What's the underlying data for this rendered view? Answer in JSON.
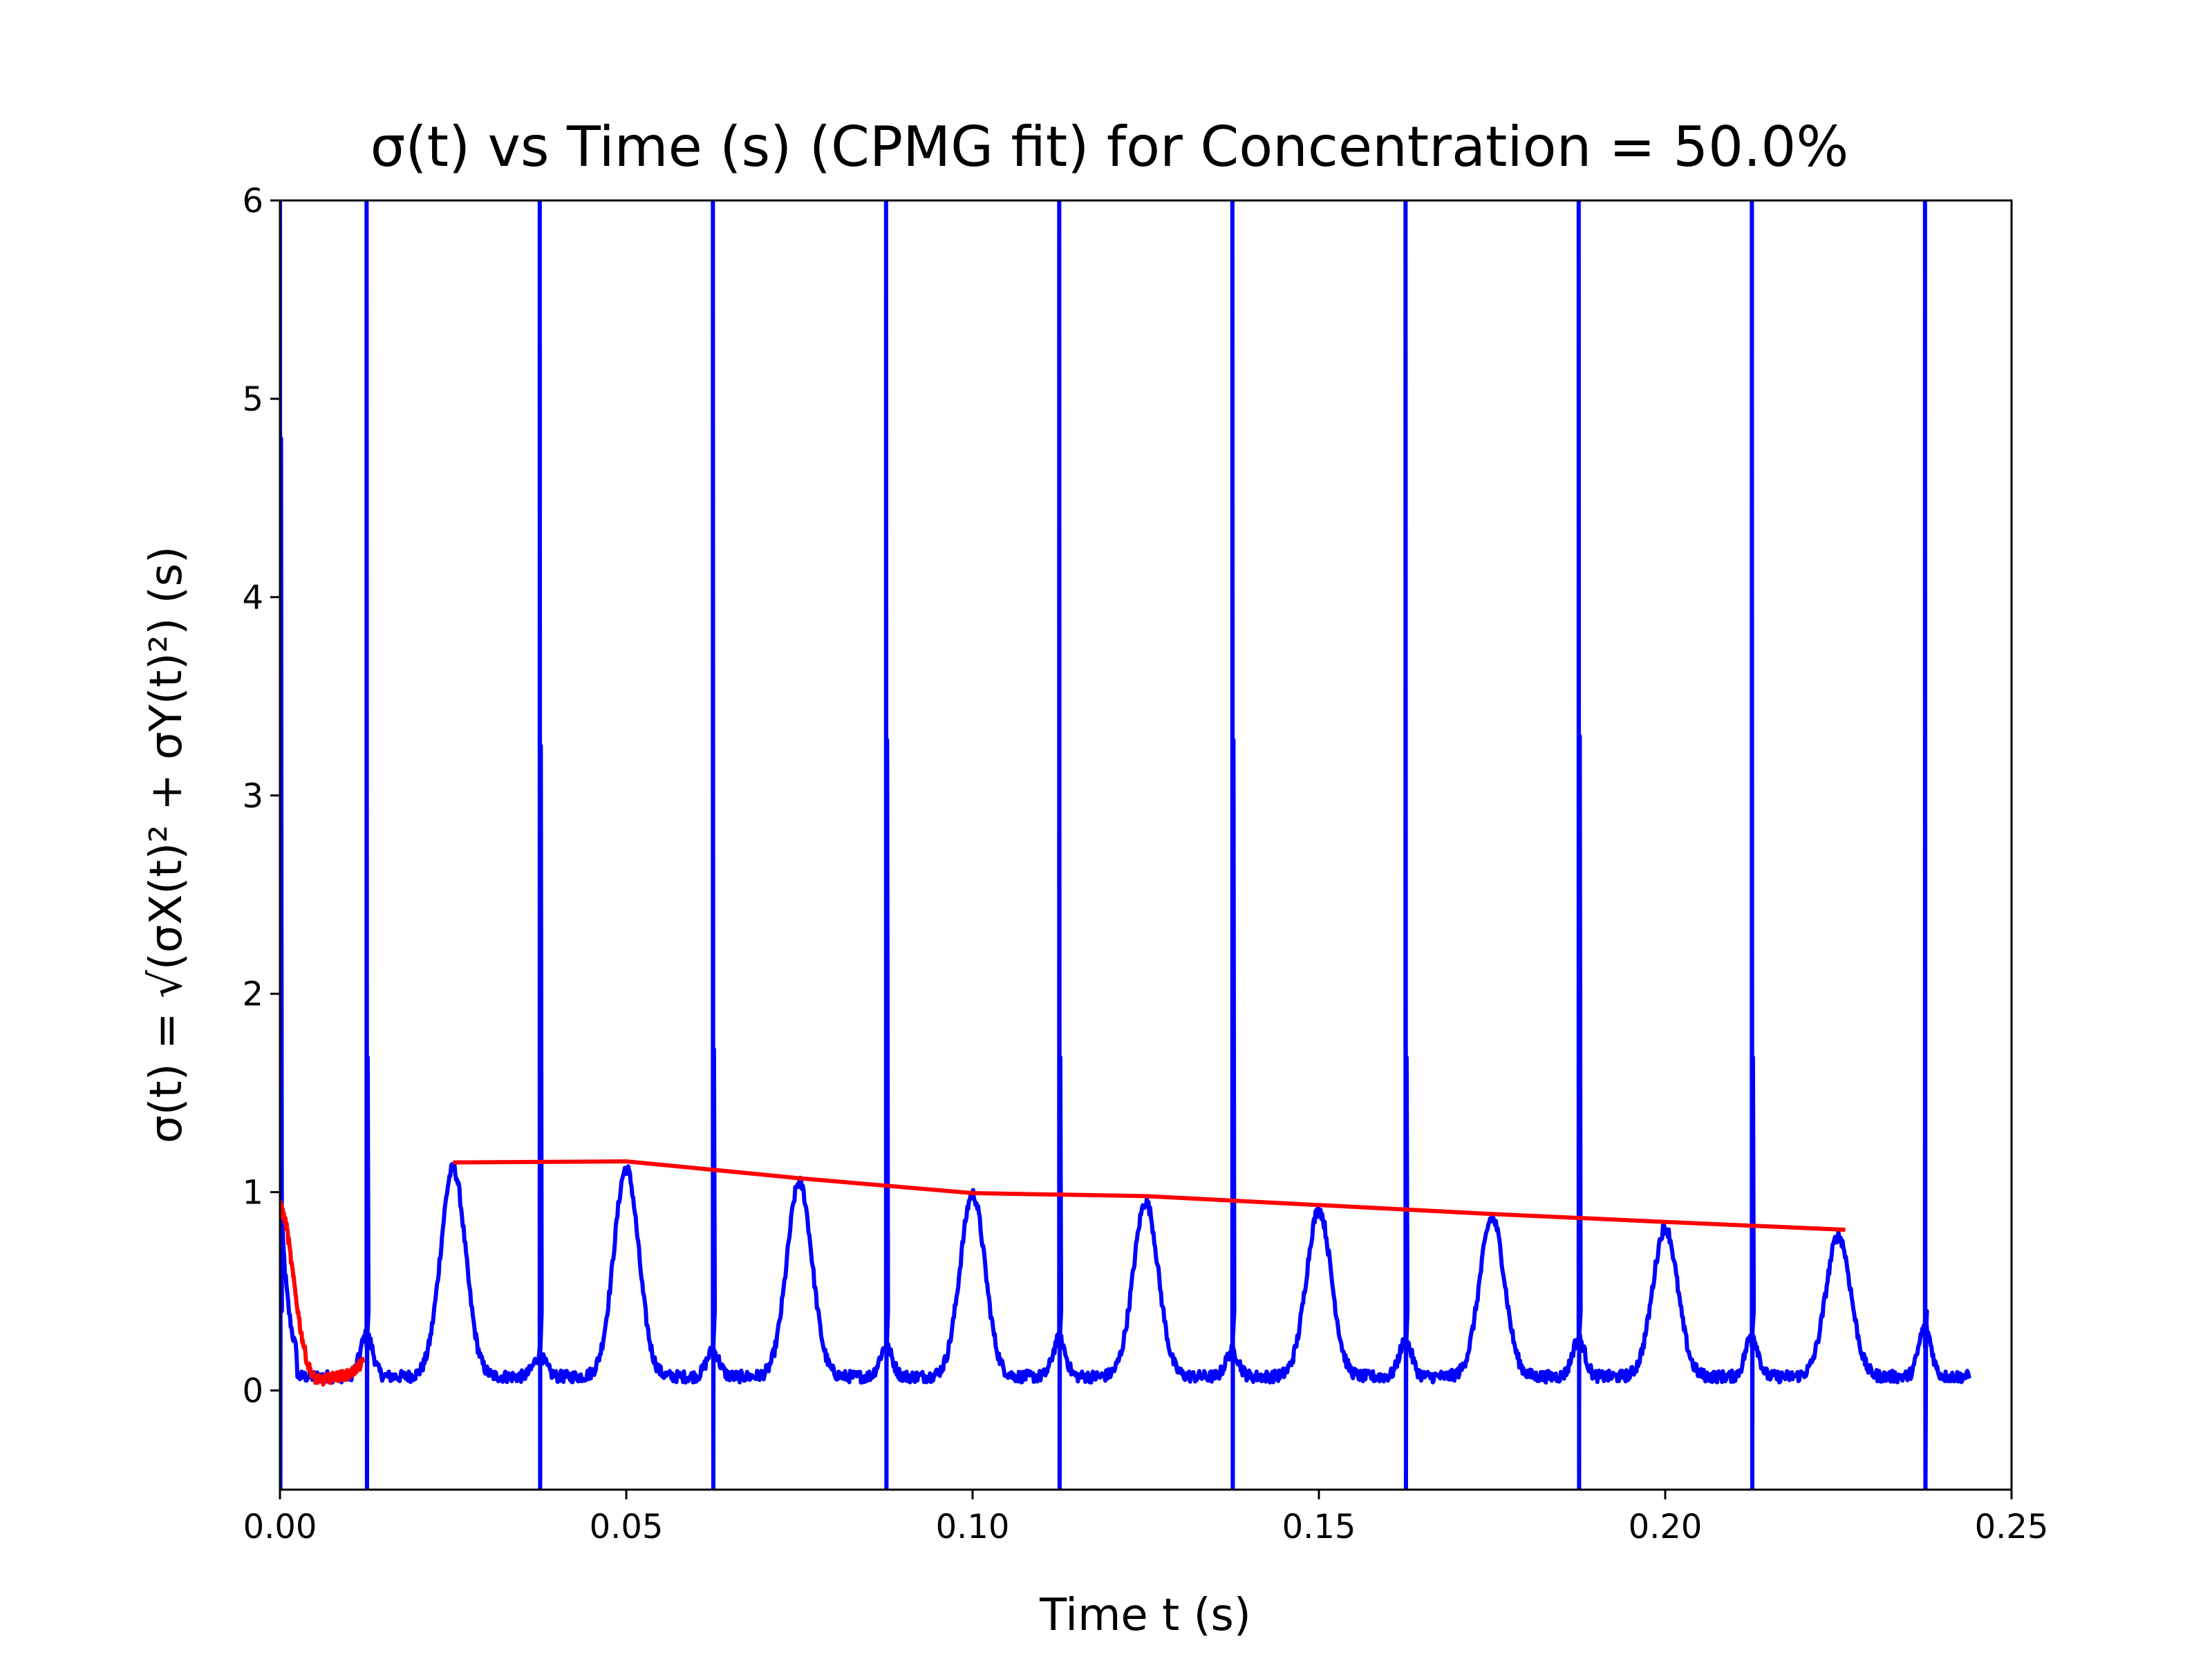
{
  "chart_data": {
    "type": "line",
    "title": "σ(t) vs Time (s) (CPMG fit) for Concentration = 50.0%",
    "xlabel": "Time t (s)",
    "ylabel": "σ(t) = √(σX(t)² + σY(t)²) (s)",
    "xlim": [
      0.0,
      0.25
    ],
    "ylim": [
      -0.5,
      6.0
    ],
    "x_ticks": [
      "0.00",
      "0.05",
      "0.10",
      "0.15",
      "0.20",
      "0.25"
    ],
    "y_ticks": [
      "0",
      "1",
      "2",
      "3",
      "4",
      "5",
      "6"
    ],
    "grid": false,
    "legend": "none",
    "series": [
      {
        "color": "#0000ff",
        "description": "measured sigma(t): baseline ~0.07 with Gaussian echo peaks every 0.025 s and sharp vertical spikes every 0.025 s offset by 0.0125 s",
        "baseline": 0.07,
        "echo_peaks": [
          {
            "x": 0.025,
            "y": 1.12
          },
          {
            "x": 0.05,
            "y": 1.12
          },
          {
            "x": 0.075,
            "y": 1.05
          },
          {
            "x": 0.1,
            "y": 0.99
          },
          {
            "x": 0.125,
            "y": 0.95
          },
          {
            "x": 0.15,
            "y": 0.91
          },
          {
            "x": 0.175,
            "y": 0.87
          },
          {
            "x": 0.2,
            "y": 0.82
          },
          {
            "x": 0.225,
            "y": 0.78
          }
        ],
        "small_bumps": [
          {
            "x": 0.0125,
            "y": 0.28
          },
          {
            "x": 0.0375,
            "y": 0.17
          },
          {
            "x": 0.0625,
            "y": 0.2
          },
          {
            "x": 0.0875,
            "y": 0.22
          },
          {
            "x": 0.1125,
            "y": 0.26
          },
          {
            "x": 0.1375,
            "y": 0.2
          },
          {
            "x": 0.1625,
            "y": 0.25
          },
          {
            "x": 0.1875,
            "y": 0.26
          },
          {
            "x": 0.2125,
            "y": 0.28
          },
          {
            "x": 0.2375,
            "y": 0.32
          }
        ],
        "spikes": [
          {
            "x": 0.0,
            "y": 6.0,
            "shoulder": 4.8
          },
          {
            "x": 0.0125,
            "y": 6.0,
            "shoulder": 1.68
          },
          {
            "x": 0.0375,
            "y": 6.0,
            "shoulder": 3.25
          },
          {
            "x": 0.0625,
            "y": 6.0,
            "shoulder": 1.72
          },
          {
            "x": 0.0875,
            "y": 6.0,
            "shoulder": 3.28
          },
          {
            "x": 0.1125,
            "y": 6.0,
            "shoulder": 1.68
          },
          {
            "x": 0.1375,
            "y": 6.0,
            "shoulder": 3.28
          },
          {
            "x": 0.1625,
            "y": 6.0,
            "shoulder": 1.68
          },
          {
            "x": 0.1875,
            "y": 6.0,
            "shoulder": 3.3
          },
          {
            "x": 0.2125,
            "y": 6.0,
            "shoulder": 1.68
          },
          {
            "x": 0.2375,
            "y": 6.0,
            "shoulder": 0.3
          }
        ],
        "x_end": 0.244,
        "initial_value": 1.05
      },
      {
        "color": "#ff0000",
        "description": "initial decay fit",
        "x": [
          0.0,
          0.001,
          0.002,
          0.003,
          0.004,
          0.005,
          0.006,
          0.008,
          0.01,
          0.012
        ],
        "y": [
          0.95,
          0.82,
          0.55,
          0.3,
          0.13,
          0.06,
          0.05,
          0.07,
          0.08,
          0.14
        ]
      },
      {
        "color": "#ff0000",
        "description": "CPMG echo envelope fit",
        "x": [
          0.025,
          0.05,
          0.075,
          0.1,
          0.125,
          0.15,
          0.175,
          0.2,
          0.226
        ],
        "y": [
          1.15,
          1.155,
          1.07,
          0.995,
          0.98,
          0.935,
          0.89,
          0.85,
          0.81
        ]
      }
    ]
  }
}
